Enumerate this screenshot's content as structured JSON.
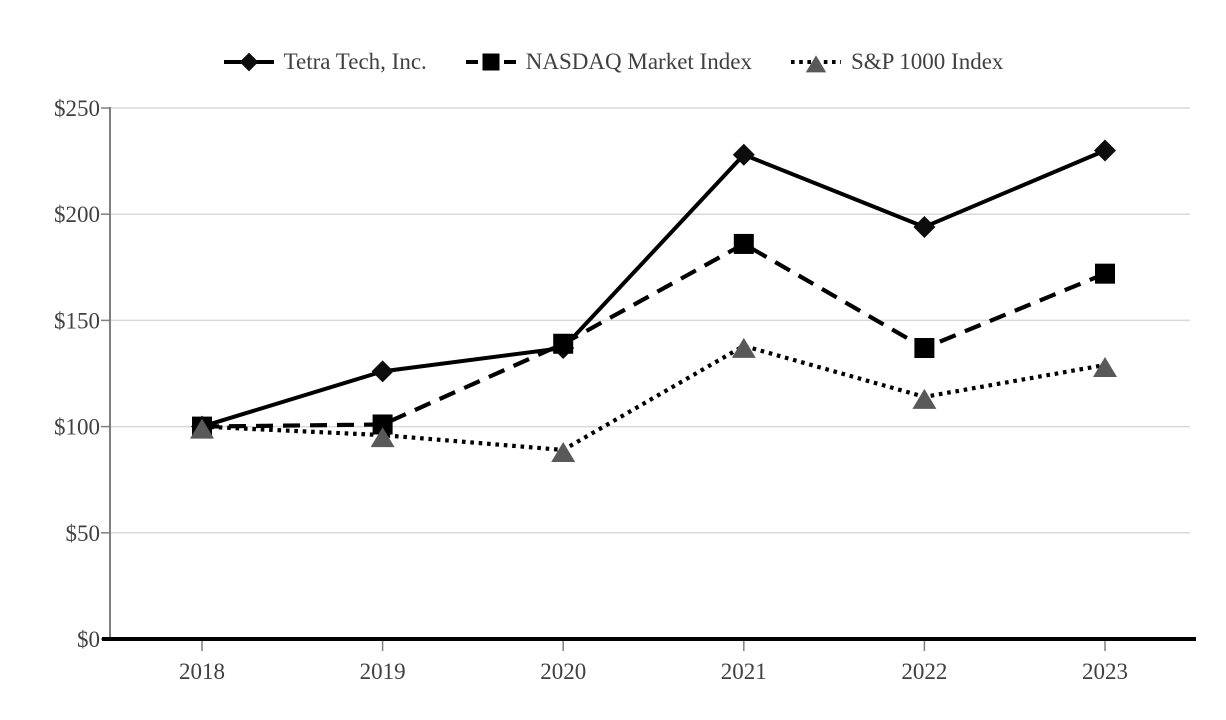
{
  "chart_data": {
    "type": "line",
    "categories": [
      "2018",
      "2019",
      "2020",
      "2021",
      "2022",
      "2023"
    ],
    "y_ticks": [
      {
        "value": 0,
        "label": "$0"
      },
      {
        "value": 50,
        "label": "$50"
      },
      {
        "value": 100,
        "label": "$100"
      },
      {
        "value": 150,
        "label": "$150"
      },
      {
        "value": 200,
        "label": "$200"
      },
      {
        "value": 250,
        "label": "$250"
      }
    ],
    "ylim": [
      0,
      250
    ],
    "grid": true,
    "legend_position": "top",
    "series": [
      {
        "name": "Tetra Tech, Inc.",
        "marker": "diamond",
        "line_style": "solid",
        "line_color": "#000000",
        "marker_color": "#0d0d0d",
        "values": [
          100,
          126,
          137,
          228,
          194,
          230
        ]
      },
      {
        "name": "NASDAQ Market Index",
        "marker": "square",
        "line_style": "dashed",
        "line_color": "#000000",
        "marker_color": "#000000",
        "values": [
          100,
          101,
          139,
          186,
          137,
          172
        ]
      },
      {
        "name": "S&P 1000 Index",
        "marker": "triangle",
        "line_style": "dotted",
        "line_color": "#000000",
        "marker_color": "#595959",
        "values": [
          100,
          96,
          89,
          138,
          114,
          129
        ]
      }
    ],
    "colors": {
      "gridline": "#d9d9d9",
      "y_axis_line": "#7f7f7f",
      "x_axis_line": "#000000",
      "tick": "#7f7f7f",
      "label_text": "#404040",
      "background": "#ffffff"
    }
  }
}
